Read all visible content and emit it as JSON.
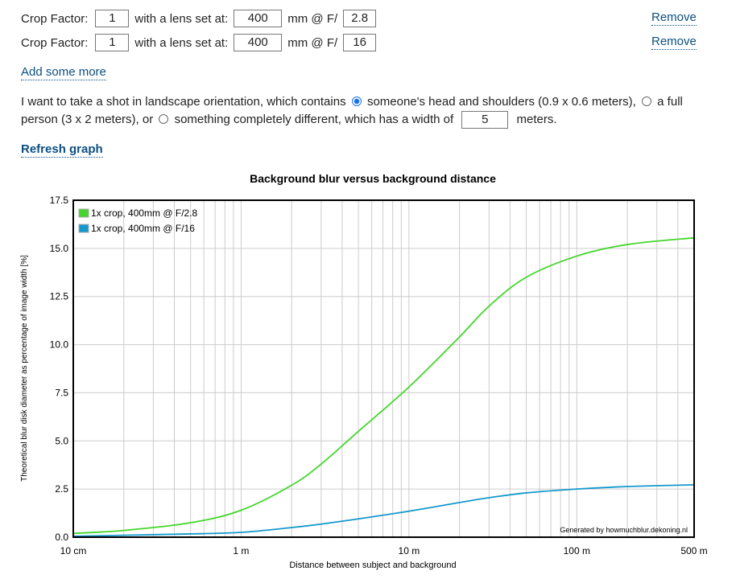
{
  "lenses": [
    {
      "crop_label": "Crop Factor:",
      "crop": "1",
      "lens_label": "with a lens set at:",
      "focal": "400",
      "f_label": "mm @ F/",
      "aperture": "2.8",
      "remove": "Remove"
    },
    {
      "crop_label": "Crop Factor:",
      "crop": "1",
      "lens_label": "with a lens set at:",
      "focal": "400",
      "f_label": "mm @ F/",
      "aperture": "16",
      "remove": "Remove"
    }
  ],
  "add_more": "Add some more",
  "scene": {
    "intro": "I want to take a shot in landscape orientation, which contains",
    "opt1": "someone's head and shoulders (0.9 x 0.6 meters),",
    "opt2": "a full person (3 x 2 meters), or",
    "opt3": "something completely different, which has a width of",
    "width": "5",
    "unit": "meters."
  },
  "refresh": "Refresh graph",
  "chart_data": {
    "type": "line",
    "title": "Background blur versus background distance",
    "xlabel": "Distance between subject and background",
    "ylabel": "Theoretical blur disk diameter as percentage of image width [%]",
    "xscale": "log",
    "xlim": [
      0.1,
      500
    ],
    "ylim": [
      0,
      17.5
    ],
    "xticks": [
      {
        "v": 0.1,
        "label": "10 cm"
      },
      {
        "v": 1,
        "label": "1 m"
      },
      {
        "v": 10,
        "label": "10 m"
      },
      {
        "v": 100,
        "label": "100 m"
      },
      {
        "v": 500,
        "label": "500 m"
      }
    ],
    "yticks": [
      "0.0",
      "2.5",
      "5.0",
      "7.5",
      "10.0",
      "12.5",
      "15.0",
      "17.5"
    ],
    "grid": true,
    "legend": "top-left",
    "watermark": "Generated by howmuchblur.dekoning.nl",
    "x": [
      0.1,
      0.2,
      0.5,
      1,
      2,
      3,
      5,
      10,
      20,
      30,
      50,
      100,
      200,
      500
    ],
    "series": [
      {
        "name": "1x crop, 400mm @ F/2.8",
        "color": "#44d62c",
        "values": [
          0.2,
          0.35,
          0.75,
          1.4,
          2.7,
          3.8,
          5.5,
          7.8,
          10.4,
          12.0,
          13.5,
          14.6,
          15.2,
          15.55
        ]
      },
      {
        "name": "1x crop, 400mm @ F/16",
        "color": "#1499cc",
        "values": [
          0.05,
          0.1,
          0.17,
          0.25,
          0.5,
          0.68,
          0.95,
          1.35,
          1.8,
          2.05,
          2.3,
          2.5,
          2.63,
          2.72
        ]
      }
    ]
  }
}
